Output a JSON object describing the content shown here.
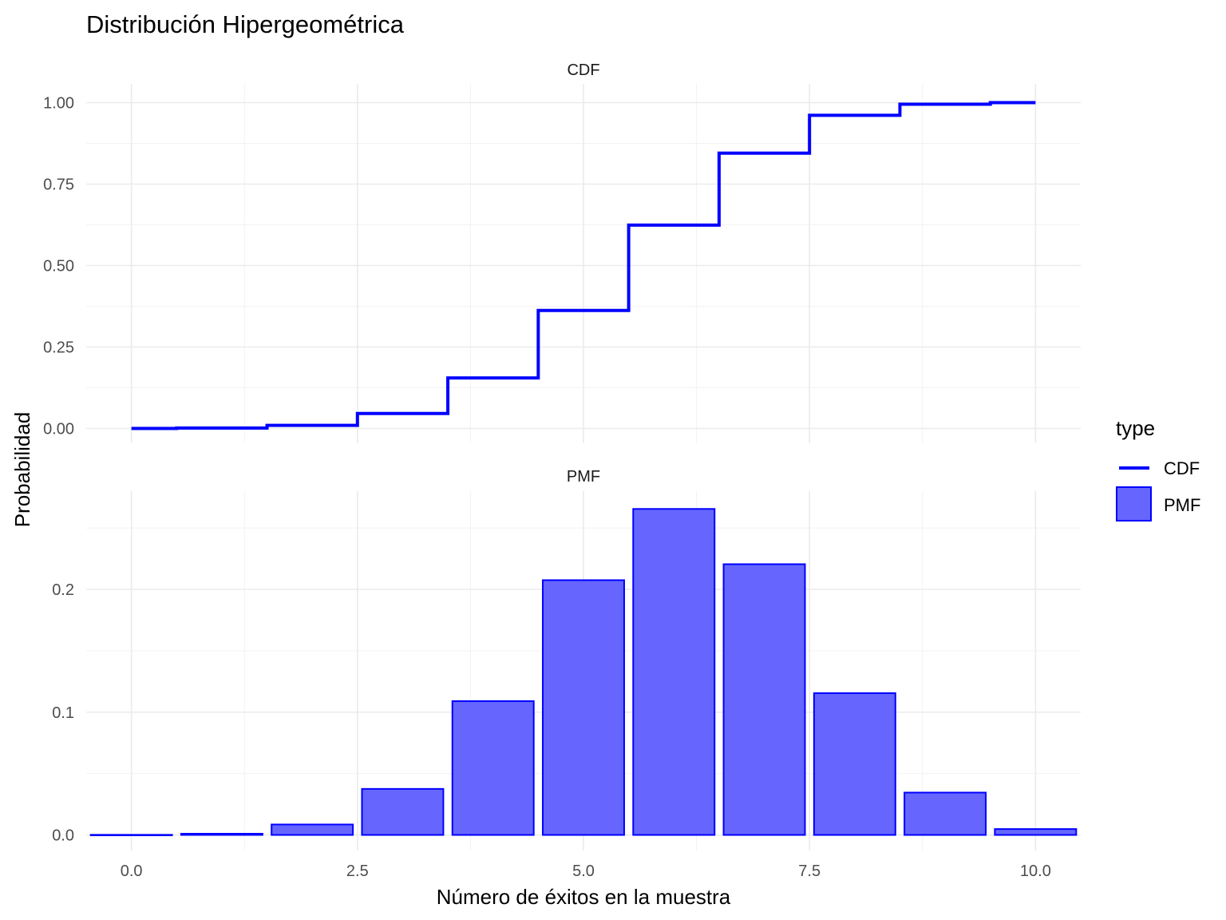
{
  "chart_data": {
    "type": "bar",
    "title": "Distribución Hipergeométrica",
    "xlabel": "Número de éxitos en la muestra",
    "ylabel": "Probabilidad",
    "legend": {
      "title": "type",
      "placement": "right",
      "entries": [
        {
          "name": "CDF",
          "color": "#0000ff",
          "kind": "line"
        },
        {
          "name": "PMF",
          "color": "#6666ff",
          "border": "#0000ff",
          "kind": "bar"
        }
      ]
    },
    "xlim": [
      -0.5,
      10.5
    ],
    "x_ticks": [
      0,
      2.5,
      5,
      7.5,
      10
    ],
    "x_tick_labels": [
      "0.0",
      "2.5",
      "5.0",
      "7.5",
      "10.0"
    ],
    "grid": true,
    "panels": [
      {
        "strip": "CDF",
        "type": "step",
        "ylim": [
          0,
          1
        ],
        "y_ticks": [
          0,
          0.25,
          0.5,
          0.75,
          1
        ],
        "y_tick_labels": [
          "0.00",
          "0.25",
          "0.50",
          "0.75",
          "1.00"
        ],
        "x": [
          0,
          1,
          2,
          3,
          4,
          5,
          6,
          7,
          8,
          9,
          10
        ],
        "values": [
          0.0001,
          0.0011,
          0.0096,
          0.046,
          0.155,
          0.362,
          0.624,
          0.845,
          0.961,
          0.995,
          1.0
        ]
      },
      {
        "strip": "PMF",
        "type": "bar",
        "ylim": [
          0,
          0.267
        ],
        "y_ticks": [
          0,
          0.1,
          0.2
        ],
        "y_tick_labels": [
          "0.0",
          "0.1",
          "0.2"
        ],
        "x": [
          0,
          1,
          2,
          3,
          4,
          5,
          6,
          7,
          8,
          9,
          10
        ],
        "values": [
          0.0001,
          0.001,
          0.0085,
          0.0375,
          0.109,
          0.2075,
          0.2655,
          0.2205,
          0.1155,
          0.0345,
          0.0048
        ]
      }
    ]
  }
}
